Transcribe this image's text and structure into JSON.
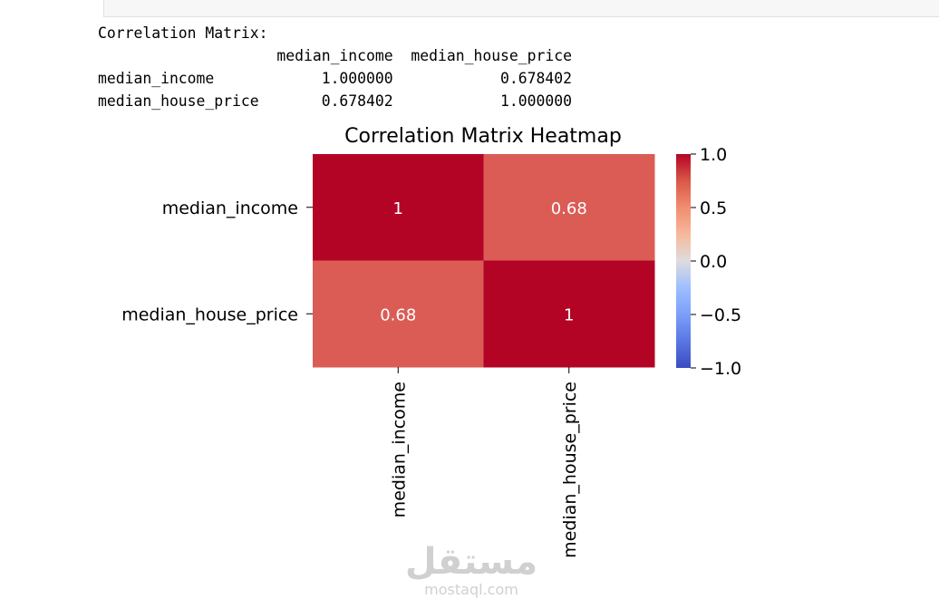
{
  "output": {
    "heading": "Correlation Matrix:",
    "columns": [
      "median_income",
      "median_house_price"
    ],
    "rows": [
      {
        "label": "median_income",
        "values": [
          "1.000000",
          "0.678402"
        ]
      },
      {
        "label": "median_house_price",
        "values": [
          "0.678402",
          "1.000000"
        ]
      }
    ]
  },
  "chart_data": {
    "type": "heatmap",
    "title": "Correlation Matrix Heatmap",
    "x_categories": [
      "median_income",
      "median_house_price"
    ],
    "y_categories": [
      "median_income",
      "median_house_price"
    ],
    "values": [
      [
        1.0,
        0.678402
      ],
      [
        0.678402,
        1.0
      ]
    ],
    "annotations": [
      [
        "1",
        "0.68"
      ],
      [
        "0.68",
        "1"
      ]
    ],
    "colormap": "coolwarm",
    "vmin": -1.0,
    "vmax": 1.0,
    "colorbar_ticks": [
      "1.0",
      "0.5",
      "0.0",
      "−0.5",
      "−1.0"
    ],
    "colors": {
      "high": "#b40426",
      "mid": "#dddddd",
      "low": "#3b4cc0"
    }
  },
  "watermark": {
    "arabic": "مستقل",
    "latin": "mostaql.com"
  }
}
